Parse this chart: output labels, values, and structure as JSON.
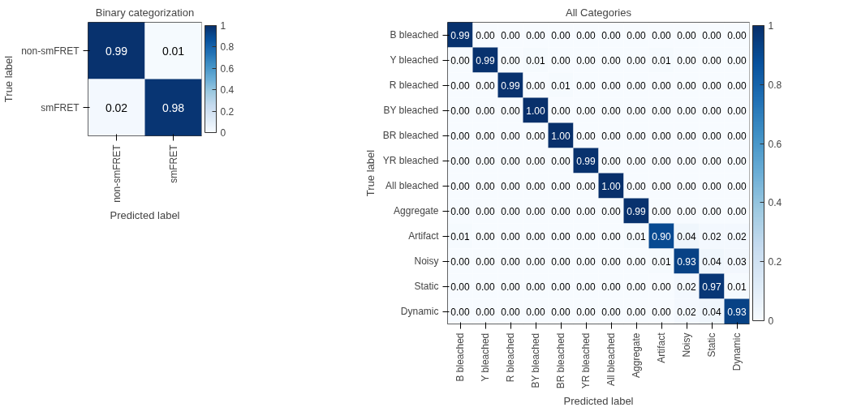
{
  "chart_data": [
    {
      "type": "heatmap",
      "title": "Binary categorization",
      "xlabel": "Predicted label",
      "ylabel": "True label",
      "categories": [
        "non-smFRET",
        "smFRET"
      ],
      "y_categories": [
        "non-smFRET",
        "smFRET"
      ],
      "cells": [
        [
          0.99,
          0.01
        ],
        [
          0.02,
          0.98
        ]
      ],
      "cell_labels": [
        [
          "0.99",
          "0.01"
        ],
        [
          "0.02",
          "0.98"
        ]
      ],
      "clim": [
        0,
        1
      ],
      "cticks": [
        0,
        0.2,
        0.4,
        0.6,
        0.8,
        1
      ]
    },
    {
      "type": "heatmap",
      "title": "All Categories",
      "xlabel": "Predicted label",
      "ylabel": "True label",
      "categories": [
        "B bleached",
        "Y bleached",
        "R bleached",
        "BY bleached",
        "BR bleached",
        "YR bleached",
        "All bleached",
        "Aggregate",
        "Artifact",
        "Noisy",
        "Static",
        "Dynamic"
      ],
      "y_categories": [
        "B bleached",
        "Y bleached",
        "R bleached",
        "BY bleached",
        "BR bleached",
        "YR bleached",
        "All bleached",
        "Aggregate",
        "Artifact",
        "Noisy",
        "Static",
        "Dynamic"
      ],
      "cells": [
        [
          0.99,
          0,
          0,
          0,
          0,
          0,
          0,
          0,
          0,
          0,
          0,
          0
        ],
        [
          0,
          0.99,
          0,
          0.01,
          0,
          0,
          0,
          0,
          0.01,
          0,
          0,
          0
        ],
        [
          0,
          0,
          0.99,
          0,
          0.01,
          0,
          0,
          0,
          0,
          0,
          0,
          0
        ],
        [
          0,
          0,
          0,
          1,
          0,
          0,
          0,
          0,
          0,
          0,
          0,
          0
        ],
        [
          0,
          0,
          0,
          0,
          1,
          0,
          0,
          0,
          0,
          0,
          0,
          0
        ],
        [
          0,
          0,
          0,
          0,
          0,
          0.99,
          0,
          0,
          0,
          0,
          0,
          0
        ],
        [
          0,
          0,
          0,
          0,
          0,
          0,
          1,
          0,
          0,
          0,
          0,
          0
        ],
        [
          0,
          0,
          0,
          0,
          0,
          0,
          0,
          0.99,
          0,
          0,
          0,
          0
        ],
        [
          0.01,
          0,
          0,
          0,
          0,
          0,
          0,
          0.01,
          0.9,
          0.04,
          0.02,
          0.02
        ],
        [
          0,
          0,
          0,
          0,
          0,
          0,
          0,
          0,
          0.01,
          0.93,
          0.04,
          0.03
        ],
        [
          0,
          0,
          0,
          0,
          0,
          0,
          0,
          0,
          0,
          0.02,
          0.97,
          0.01
        ],
        [
          0,
          0,
          0,
          0,
          0,
          0,
          0,
          0,
          0,
          0.02,
          0.04,
          0.93
        ]
      ],
      "cell_labels": [
        [
          "0.99",
          "0.00",
          "0.00",
          "0.00",
          "0.00",
          "0.00",
          "0.00",
          "0.00",
          "0.00",
          "0.00",
          "0.00",
          "0.00"
        ],
        [
          "0.00",
          "0.99",
          "0.00",
          "0.01",
          "0.00",
          "0.00",
          "0.00",
          "0.00",
          "0.01",
          "0.00",
          "0.00",
          "0.00"
        ],
        [
          "0.00",
          "0.00",
          "0.99",
          "0.00",
          "0.01",
          "0.00",
          "0.00",
          "0.00",
          "0.00",
          "0.00",
          "0.00",
          "0.00"
        ],
        [
          "0.00",
          "0.00",
          "0.00",
          "1.00",
          "0.00",
          "0.00",
          "0.00",
          "0.00",
          "0.00",
          "0.00",
          "0.00",
          "0.00"
        ],
        [
          "0.00",
          "0.00",
          "0.00",
          "0.00",
          "1.00",
          "0.00",
          "0.00",
          "0.00",
          "0.00",
          "0.00",
          "0.00",
          "0.00"
        ],
        [
          "0.00",
          "0.00",
          "0.00",
          "0.00",
          "0.00",
          "0.99",
          "0.00",
          "0.00",
          "0.00",
          "0.00",
          "0.00",
          "0.00"
        ],
        [
          "0.00",
          "0.00",
          "0.00",
          "0.00",
          "0.00",
          "0.00",
          "1.00",
          "0.00",
          "0.00",
          "0.00",
          "0.00",
          "0.00"
        ],
        [
          "0.00",
          "0.00",
          "0.00",
          "0.00",
          "0.00",
          "0.00",
          "0.00",
          "0.99",
          "0.00",
          "0.00",
          "0.00",
          "0.00"
        ],
        [
          "0.01",
          "0.00",
          "0.00",
          "0.00",
          "0.00",
          "0.00",
          "0.00",
          "0.01",
          "0.90",
          "0.04",
          "0.02",
          "0.02"
        ],
        [
          "0.00",
          "0.00",
          "0.00",
          "0.00",
          "0.00",
          "0.00",
          "0.00",
          "0.00",
          "0.01",
          "0.93",
          "0.04",
          "0.03"
        ],
        [
          "0.00",
          "0.00",
          "0.00",
          "0.00",
          "0.00",
          "0.00",
          "0.00",
          "0.00",
          "0.00",
          "0.02",
          "0.97",
          "0.01"
        ],
        [
          "0.00",
          "0.00",
          "0.00",
          "0.00",
          "0.00",
          "0.00",
          "0.00",
          "0.00",
          "0.00",
          "0.02",
          "0.04",
          "0.93"
        ]
      ],
      "clim": [
        0,
        1
      ],
      "cticks": [
        0,
        0.2,
        0.4,
        0.6,
        0.8,
        1
      ]
    }
  ]
}
